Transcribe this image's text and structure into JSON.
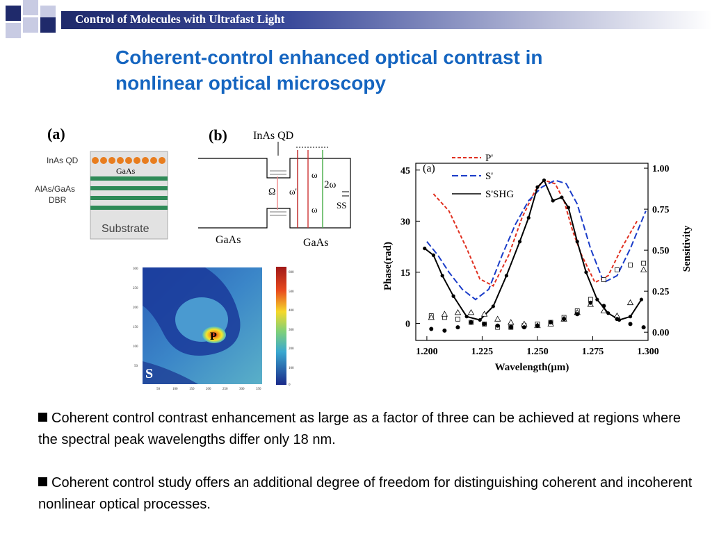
{
  "header": {
    "title": "Control of Molecules with Ultrafast Light"
  },
  "slide": {
    "title_line1": "Coherent-control enhanced optical contrast in",
    "title_line2": "nonlinear optical microscopy"
  },
  "figure_a": {
    "panel_label": "(a)",
    "layer_qd": "InAs QD",
    "layer_gaas": "GaAs",
    "layer_dbr_line1": "AlAs/GaAs",
    "layer_dbr_line2": "DBR",
    "substrate": "Substrate"
  },
  "figure_b": {
    "panel_label": "(b)",
    "qd_label": "InAs QD",
    "omega_cap": "Ω",
    "omega": "ω",
    "omega_prime": "ω'",
    "two_omega": "2ω",
    "ss": "SS",
    "gaas_left": "GaAs",
    "gaas_right": "GaAs"
  },
  "map": {
    "y_ticks": [
      "300",
      "250",
      "200",
      "150",
      "100",
      "50"
    ],
    "x_ticks": [
      "50",
      "100",
      "150",
      "200",
      "250",
      "300",
      "350"
    ],
    "colorbar_ticks": [
      "600",
      "500",
      "400",
      "300",
      "200",
      "100",
      "0"
    ],
    "label_p": "P",
    "label_s": "S"
  },
  "chart_data": {
    "type": "scatter",
    "panel_label": "(a)",
    "xlabel": "Wavelength(μm)",
    "ylabel": "Phase(rad)",
    "y2label": "Sensitivity",
    "xlim": [
      1.195,
      1.3
    ],
    "ylim": [
      -5,
      47
    ],
    "y2lim": [
      -0.05,
      1.03
    ],
    "x_ticks": [
      "1.200",
      "1.225",
      "1.250",
      "1.275",
      "1.300"
    ],
    "y_ticks": [
      "0",
      "15",
      "30",
      "45"
    ],
    "y2_ticks": [
      "0.00",
      "0.25",
      "0.50",
      "0.75",
      "1.00"
    ],
    "legend": [
      "P'",
      "S'",
      "S'SHG"
    ],
    "series": [
      {
        "name": "P'",
        "style": "dashed",
        "color": "#e03020",
        "axis": "phase",
        "x": [
          1.203,
          1.21,
          1.218,
          1.224,
          1.23,
          1.237,
          1.243,
          1.249,
          1.253,
          1.258,
          1.262,
          1.266,
          1.27,
          1.276,
          1.282,
          1.288,
          1.295
        ],
        "y": [
          38,
          33,
          22,
          13,
          11,
          20,
          31,
          39,
          42,
          41,
          36,
          27,
          20,
          12,
          14,
          22,
          30
        ]
      },
      {
        "name": "S'",
        "style": "dashed",
        "color": "#1a3cc8",
        "axis": "phase",
        "x": [
          1.2,
          1.205,
          1.21,
          1.216,
          1.222,
          1.228,
          1.234,
          1.24,
          1.246,
          1.252,
          1.258,
          1.263,
          1.268,
          1.274,
          1.28,
          1.286,
          1.292,
          1.299
        ],
        "y": [
          24,
          20,
          15,
          10,
          7,
          10,
          20,
          29,
          36,
          40,
          42,
          41,
          35,
          22,
          12,
          14,
          22,
          33
        ]
      },
      {
        "name": "S'SHG",
        "style": "solid",
        "color": "#000000",
        "axis": "phase",
        "x": [
          1.199,
          1.203,
          1.207,
          1.212,
          1.218,
          1.224,
          1.23,
          1.236,
          1.242,
          1.246,
          1.25,
          1.253,
          1.257,
          1.261,
          1.264,
          1.268,
          1.272,
          1.277,
          1.282,
          1.287,
          1.292,
          1.297
        ],
        "y": [
          22,
          20,
          14,
          8,
          2,
          1,
          5,
          14,
          24,
          31,
          40,
          42,
          36,
          37,
          34,
          24,
          15,
          7,
          3,
          1,
          2,
          7
        ]
      },
      {
        "name": "P' sensitivity",
        "marker": "square-open",
        "color": "#000000",
        "axis": "sensitivity",
        "x": [
          1.202,
          1.208,
          1.214,
          1.22,
          1.226,
          1.232,
          1.238,
          1.244,
          1.25,
          1.256,
          1.262,
          1.268,
          1.274,
          1.28,
          1.286,
          1.292,
          1.298
        ],
        "y": [
          0.1,
          0.09,
          0.08,
          0.06,
          0.05,
          0.03,
          0.03,
          0.04,
          0.05,
          0.06,
          0.09,
          0.13,
          0.2,
          0.32,
          0.38,
          0.41,
          0.42
        ]
      },
      {
        "name": "S' sensitivity",
        "marker": "triangle-open",
        "color": "#000000",
        "axis": "sensitivity",
        "x": [
          1.202,
          1.208,
          1.214,
          1.22,
          1.226,
          1.232,
          1.238,
          1.244,
          1.25,
          1.256,
          1.262,
          1.268,
          1.274,
          1.28,
          1.286,
          1.292,
          1.298
        ],
        "y": [
          0.09,
          0.11,
          0.12,
          0.12,
          0.11,
          0.08,
          0.06,
          0.05,
          0.04,
          0.05,
          0.08,
          0.12,
          0.17,
          0.13,
          0.1,
          0.18,
          0.38
        ]
      },
      {
        "name": "S'SHG sensitivity",
        "marker": "circle-filled",
        "color": "#000000",
        "axis": "sensitivity",
        "x": [
          1.202,
          1.208,
          1.214,
          1.22,
          1.226,
          1.232,
          1.238,
          1.244,
          1.25,
          1.256,
          1.262,
          1.268,
          1.274,
          1.28,
          1.286,
          1.292,
          1.298
        ],
        "y": [
          0.02,
          0.01,
          0.03,
          0.06,
          0.05,
          0.04,
          0.03,
          0.03,
          0.04,
          0.06,
          0.08,
          0.11,
          0.18,
          0.16,
          0.08,
          0.05,
          0.03
        ]
      }
    ]
  },
  "bullets": [
    "Coherent control contrast enhancement as large as a factor of three can be achieved at regions where the spectral peak wavelengths differ only 18 nm.",
    "Coherent control study offers an additional degree of freedom for distinguishing coherent and incoherent nonlinear optical processes."
  ]
}
